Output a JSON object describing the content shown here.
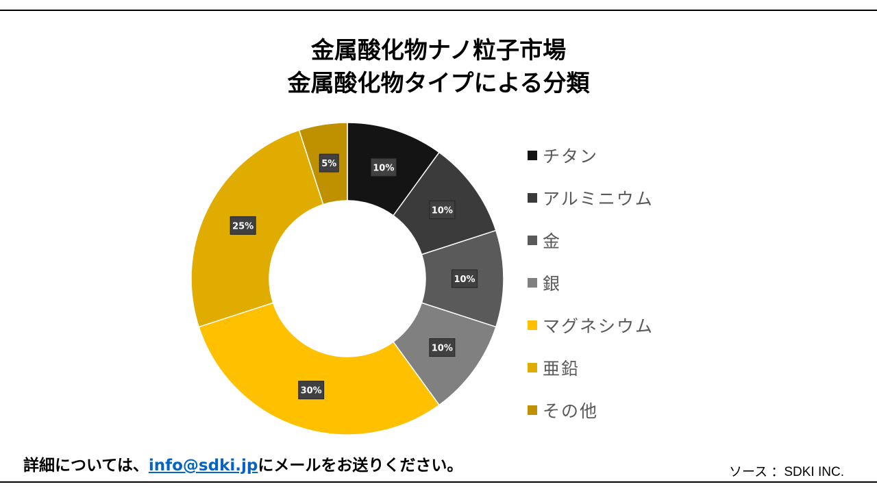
{
  "colors": {
    "rule": "#000000",
    "label_box": "#404040",
    "label_text": "#ffffff",
    "legend_text": "#595959",
    "link": "#0563c1"
  },
  "footer": {
    "prefix": "詳細については、",
    "email": "info@sdki.jp",
    "suffix": "にメールをお送りください。",
    "source": "ソース ：SDKI INC."
  },
  "chart_data": {
    "type": "pie",
    "subtype": "donut",
    "title": "金属酸化物ナノ粒子市場",
    "subtitle": "金属酸化物タイプによる分類",
    "legend_position": "right",
    "unit": "%",
    "categories": [
      "チタン",
      "アルミニウム",
      "金",
      "銀",
      "マグネシウム",
      "亜鉛",
      "その他"
    ],
    "values": [
      10,
      10,
      10,
      10,
      30,
      25,
      5
    ],
    "labels": [
      "10%",
      "10%",
      "10%",
      "10%",
      "30%",
      "25%",
      "5%"
    ],
    "colors": [
      "#141414",
      "#3b3b3b",
      "#5a5a5a",
      "#808080",
      "#ffc000",
      "#e0ac00",
      "#bf9000"
    ]
  }
}
